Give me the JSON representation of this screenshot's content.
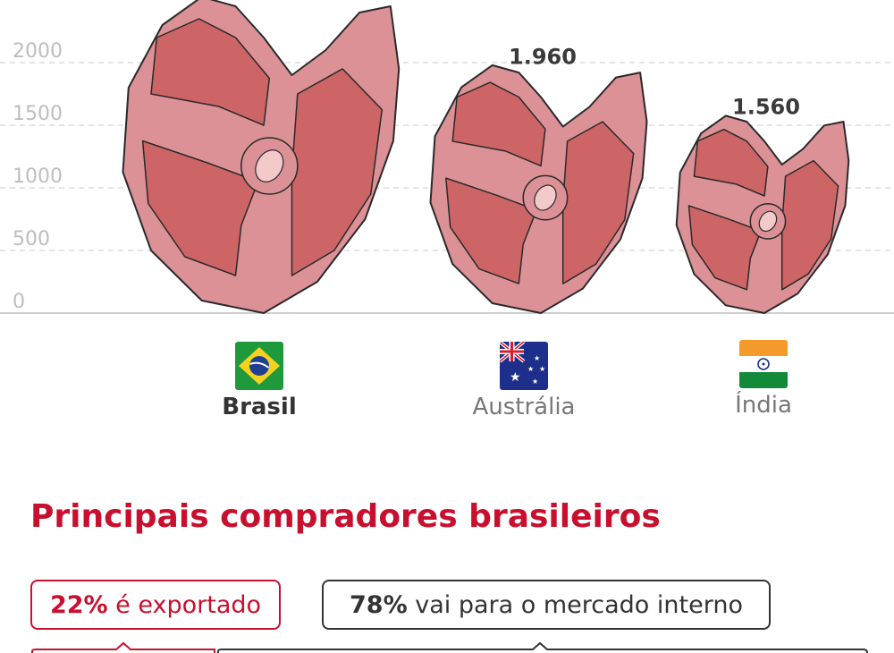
{
  "chart_data": {
    "type": "bar",
    "ylim": [
      0,
      2500
    ],
    "y_ticks": [
      0,
      500,
      1000,
      1500,
      2000
    ],
    "grid": true,
    "categories": [
      "Brasil",
      "Austrália",
      "Índia"
    ],
    "values": [
      2500,
      1960,
      1560
    ],
    "value_labels": [
      "",
      "1.960",
      "1.560"
    ],
    "highlight": "Brasil"
  },
  "flags": [
    {
      "country": "Brasil",
      "icon": "brazil-flag-icon"
    },
    {
      "country": "Austrália",
      "icon": "australia-flag-icon"
    },
    {
      "country": "Índia",
      "icon": "india-flag-icon"
    }
  ],
  "buyers": {
    "title": "Principais compradores brasileiros",
    "export_pct": "22%",
    "export_text": " é exportado",
    "domestic_pct": "78%",
    "domestic_text": " vai para o mercado interno"
  },
  "colors": {
    "accent": "#c8102e",
    "meat_fill": "#cd6466",
    "fat_fill": "#db9196",
    "bone_fill": "#f3c9ca",
    "outline": "#2a2a2a",
    "grid": "#c8c8c8"
  }
}
